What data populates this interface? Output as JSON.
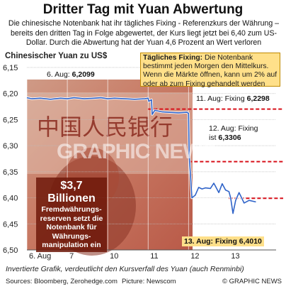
{
  "header": {
    "title": "Dritter Tag mit Yuan Abwertung",
    "subtitle": "Die chinesische Notenbank hat ihr tägliches Fixing - Referenzkurs der Währung – bereits den dritten Tag in Folge abgewertet, der Kurs liegt jetzt bei 6,40 zum US-Dollar. Durch die Abwertung hat der Yuan 4,6 Prozent an Wert verloren"
  },
  "fixing_box": {
    "heading": "Tägliches Fixing:",
    "text": " Die Notenbank bestimmt jeden Morgen den Mittelkurs. Wenn die Märkte öffnen, kann um 2% auf oder ab zum Fixing gehandelt werden"
  },
  "reserve_box": {
    "amount": "$3,7 Billionen",
    "text": "Fremdwährungs-reserven setzt die Notenbank für Währungs-manipulation ein"
  },
  "annotations": {
    "aug6_label": "6. Aug: ",
    "aug6_value": "6,2099",
    "aug11_label": "11. Aug: Fixing ",
    "aug11_value": "6,2298",
    "aug12_label": "12. Aug: Fixing",
    "aug12_label2": "ist ",
    "aug12_value": "6,3306",
    "aug13_label": "13. Aug: Fixing ",
    "aug13_value": "6,4010"
  },
  "footer": {
    "note": "Invertierte Grafik, verdeutlicht den Kursverfall des Yuan (auch Renminbi)",
    "sources": "Sources: Bloomberg, Zerohedge.com",
    "picture": "Picture: Newscom",
    "credit": "© GRAPHIC NEWS"
  },
  "watermark": "GRAPHIC NEWS",
  "colors": {
    "line": "#2f63c8",
    "fixing": "#d8101a",
    "annotation_box": "#ffe08a",
    "grid": "#bbbbbb"
  },
  "chart_data": {
    "type": "line",
    "title": "Dritter Tag mit Yuan Abwertung",
    "ylabel": "Chinesischer Yuan zu US$",
    "ylim": [
      6.15,
      6.5
    ],
    "y_inverted": true,
    "yticks": [
      "6,15",
      "6,20",
      "6,25",
      "6,30",
      "6,35",
      "6,40",
      "6,45",
      "6,50"
    ],
    "ytick_values": [
      6.15,
      6.2,
      6.25,
      6.3,
      6.35,
      6.4,
      6.45,
      6.5
    ],
    "xlim": [
      0,
      7.4
    ],
    "xticks": [
      "6. Aug",
      "7",
      "10",
      "11",
      "12",
      "13"
    ],
    "xtick_positions": [
      0,
      1.2,
      2.4,
      3.6,
      4.8,
      6.0
    ],
    "series": [
      {
        "name": "",
        "x": [
          0.0,
          0.15,
          0.4,
          0.7,
          1.0,
          1.2,
          1.4,
          1.7,
          2.0,
          2.2,
          2.4,
          2.6,
          2.9,
          3.2,
          3.5,
          3.6,
          3.62,
          3.7,
          3.72,
          3.8,
          3.85,
          4.0,
          4.2,
          4.5,
          4.75,
          4.8,
          4.82,
          4.87,
          4.9,
          5.0,
          5.1,
          5.2,
          5.3,
          5.45,
          5.55,
          5.6,
          5.7,
          5.8,
          5.9,
          6.0,
          6.05,
          6.12,
          6.2,
          6.3,
          6.45,
          6.6,
          6.8
        ],
        "y": [
          6.208,
          6.21,
          6.209,
          6.211,
          6.209,
          6.21,
          6.208,
          6.21,
          6.209,
          6.208,
          6.21,
          6.209,
          6.21,
          6.211,
          6.21,
          6.209,
          6.215,
          6.212,
          6.24,
          6.232,
          6.233,
          6.235,
          6.236,
          6.237,
          6.236,
          6.238,
          6.32,
          6.37,
          6.4,
          6.395,
          6.38,
          6.383,
          6.381,
          6.382,
          6.372,
          6.378,
          6.39,
          6.373,
          6.385,
          6.388,
          6.4,
          6.43,
          6.405,
          6.39,
          6.41,
          6.405,
          6.408
        ]
      }
    ],
    "fixing_levels": [
      {
        "label": "11. Aug",
        "value": 6.2298
      },
      {
        "label": "12. Aug",
        "value": 6.3306
      },
      {
        "label": "13. Aug",
        "value": 6.401
      }
    ]
  }
}
